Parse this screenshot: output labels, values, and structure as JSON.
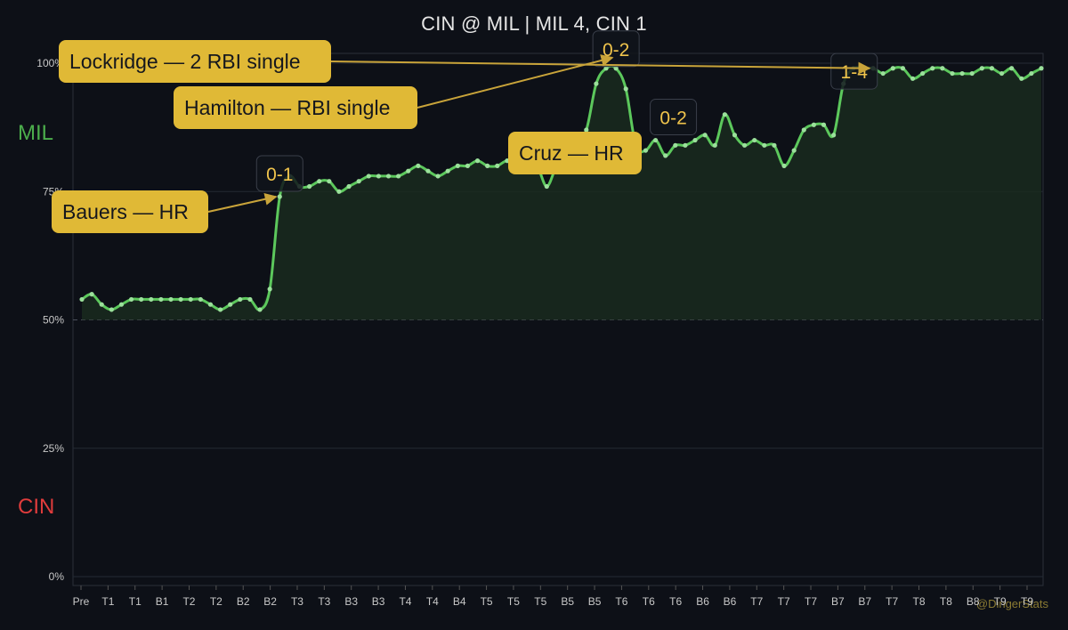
{
  "title": "CIN @ MIL  |  MIL 4, CIN 1",
  "teams": {
    "top_label": "MIL",
    "top_color": "#4cae4c",
    "bottom_label": "CIN",
    "bottom_color": "#e03c3c"
  },
  "watermark": "@DingerStats",
  "colors": {
    "background": "#0d1017",
    "line": "#5cc85c",
    "fill": "#1a2a1f",
    "annotation": "#e0b936",
    "score_box": "#11141b",
    "score_text": "#f0c44c"
  },
  "chart_data": {
    "type": "line",
    "title": "CIN @ MIL  |  MIL 4, CIN 1",
    "ylim": [
      0,
      100
    ],
    "y_ticks": [
      "0%",
      "25%",
      "50%",
      "75%",
      "100%"
    ],
    "grid": true,
    "x_tick_labels": [
      "Pre",
      "T1",
      "T1",
      "B1",
      "T2",
      "T2",
      "B2",
      "B2",
      "T3",
      "T3",
      "B3",
      "B3",
      "T4",
      "T4",
      "B4",
      "T5",
      "T5",
      "T5",
      "B5",
      "B5",
      "T6",
      "T6",
      "T6",
      "B6",
      "B6",
      "T7",
      "T7",
      "T7",
      "B7",
      "B7",
      "T7",
      "T8",
      "T8",
      "B8",
      "T9",
      "T9"
    ],
    "series": [
      {
        "name": "MIL",
        "values": [
          54,
          55,
          53,
          52,
          53,
          54,
          54,
          54,
          54,
          54,
          54,
          54,
          54,
          53,
          52,
          53,
          54,
          54,
          52,
          56,
          74,
          78,
          76,
          76,
          77,
          77,
          75,
          76,
          77,
          78,
          78,
          78,
          78,
          79,
          80,
          79,
          78,
          79,
          80,
          80,
          81,
          80,
          80,
          81,
          80,
          79,
          80,
          76,
          80,
          82,
          85,
          87,
          96,
          99,
          99,
          95,
          84,
          83,
          85,
          82,
          84,
          84,
          85,
          86,
          84,
          90,
          86,
          84,
          85,
          84,
          84,
          80,
          83,
          87,
          88,
          88,
          86,
          96,
          99,
          99,
          99,
          98,
          99,
          99,
          97,
          98,
          99,
          99,
          98,
          98,
          98,
          99,
          99,
          98,
          99,
          97,
          98,
          99
        ]
      }
    ],
    "score_boxes": [
      {
        "label": "0-1",
        "index": 20
      },
      {
        "label": "0-2",
        "index": 54
      },
      {
        "label": "0-2",
        "index": 58
      },
      {
        "label": "1-4",
        "index": 77
      }
    ],
    "annotations": [
      {
        "text": "Bauers — HR",
        "index": 20
      },
      {
        "text": "Hamilton — RBI single",
        "index": 54
      },
      {
        "text": "Cruz — HR",
        "index": 58
      },
      {
        "text": "Lockridge — 2 RBI single",
        "index": 80
      }
    ]
  }
}
